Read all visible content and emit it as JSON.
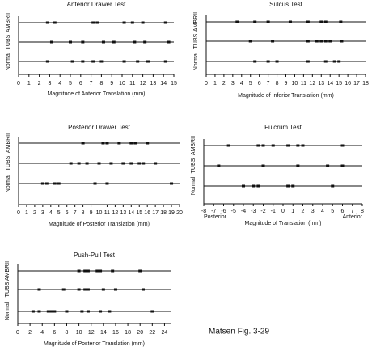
{
  "caption": "Matsen Fig. 3-29",
  "chart_data": [
    {
      "type": "strip",
      "title": "Anterior Drawer Test",
      "xlabel": "Magnitude of Anterior Translation (mm)",
      "xlim": [
        0,
        15
      ],
      "xticks": [
        0,
        1,
        2,
        3,
        4,
        5,
        6,
        7,
        8,
        9,
        10,
        11,
        12,
        13,
        14,
        15
      ],
      "color": "#111111",
      "series": [
        {
          "name": "Normal",
          "values": [
            2.8,
            5.2,
            6.2,
            7.2,
            8,
            10.2,
            11.5,
            12.5,
            14.2
          ]
        },
        {
          "name": "TUBS",
          "values": [
            3.2,
            5,
            6.2,
            8.2,
            9.2,
            11.2,
            12.2,
            14.5
          ]
        },
        {
          "name": "AMBRII",
          "values": [
            2.8,
            3.5,
            7.2,
            7.6,
            10.2,
            11,
            12,
            14.2
          ]
        }
      ]
    },
    {
      "type": "strip",
      "title": "Sulcus Test",
      "xlabel": "Magnitude of Inferior Translation (mm)",
      "xlim": [
        0,
        18
      ],
      "xticks": [
        0,
        1,
        2,
        3,
        4,
        5,
        6,
        7,
        8,
        9,
        10,
        11,
        12,
        13,
        14,
        15,
        16,
        17,
        18
      ],
      "color": "#111111",
      "series": [
        {
          "name": "Normal",
          "values": [
            5.5,
            7,
            8,
            11.5,
            13.5,
            14.5,
            15
          ]
        },
        {
          "name": "TUBS",
          "values": [
            5,
            7.5,
            11.5,
            12.5,
            13,
            13.5,
            14,
            15.3
          ]
        },
        {
          "name": "AMBRII",
          "values": [
            3.5,
            5.5,
            7,
            9.5,
            11.5,
            13,
            13.5,
            15.2
          ]
        }
      ]
    },
    {
      "type": "strip",
      "title": "Posterior Drawer Test",
      "xlabel": "Magnitude of Posterior Translation (mm)",
      "xlim": [
        0,
        20
      ],
      "xticks": [
        0,
        1,
        2,
        3,
        4,
        5,
        6,
        7,
        8,
        9,
        10,
        11,
        12,
        13,
        14,
        15,
        16,
        17,
        18,
        19,
        20
      ],
      "color": "#111111",
      "series": [
        {
          "name": "Normal",
          "values": [
            3,
            3.5,
            4.5,
            5,
            9.5,
            11,
            19
          ]
        },
        {
          "name": "TUBS",
          "values": [
            6.5,
            7.5,
            8.5,
            10,
            11.5,
            13,
            14,
            15,
            15.5,
            17
          ]
        },
        {
          "name": "AMBRII",
          "values": [
            8,
            10.5,
            11,
            12.5,
            14,
            14.5,
            16
          ]
        }
      ]
    },
    {
      "type": "strip",
      "title": "Fulcrum Test",
      "xlabel": "Magnitude of Translation (mm)",
      "xlim": [
        -8,
        8
      ],
      "xticks": [
        -8,
        -7,
        -6,
        -5,
        -4,
        -3,
        -2,
        -1,
        0,
        1,
        2,
        3,
        4,
        5,
        6,
        7,
        8
      ],
      "color": "#111111",
      "annotations": [
        "Posterior",
        "Anterior"
      ],
      "series": [
        {
          "name": "Normal",
          "values": [
            -4,
            -3,
            -2.5,
            0.5,
            1,
            5
          ]
        },
        {
          "name": "TUBS",
          "values": [
            -6.5,
            -2,
            1.5,
            4.5,
            6
          ]
        },
        {
          "name": "AMBRII",
          "values": [
            -5.5,
            -2.5,
            -2,
            -1,
            0.5,
            1.5,
            2,
            6
          ]
        }
      ]
    },
    {
      "type": "strip",
      "title": "Push-Pull Test",
      "xlabel": "Magnitude of Posterior Translation (mm)",
      "xlim": [
        0,
        25
      ],
      "xticks": [
        0,
        2,
        4,
        6,
        8,
        10,
        12,
        14,
        16,
        18,
        20,
        22,
        24
      ],
      "color": "#111111",
      "series": [
        {
          "name": "Normal",
          "values": [
            2.5,
            3.5,
            5,
            5.5,
            6,
            8,
            10.5,
            11.5,
            13.5,
            15,
            22
          ]
        },
        {
          "name": "TUBS",
          "values": [
            3.5,
            7.5,
            10,
            11,
            11.5,
            14,
            16,
            20.5
          ]
        },
        {
          "name": "AMBRII",
          "values": [
            10,
            11,
            11.5,
            13,
            13.5,
            15.5,
            20
          ]
        }
      ]
    }
  ]
}
